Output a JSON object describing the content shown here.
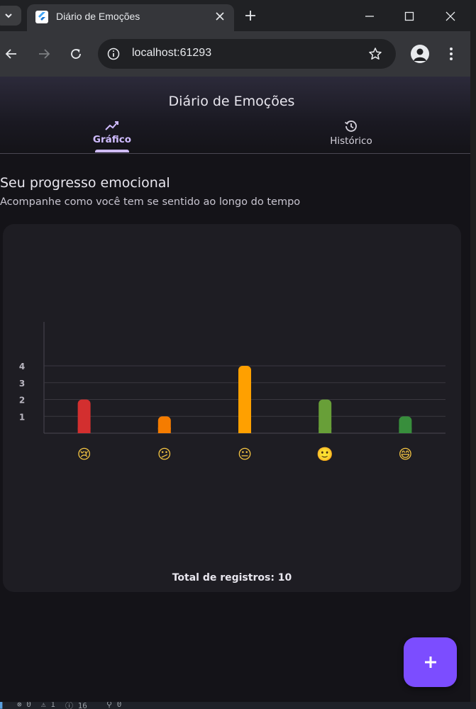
{
  "browser": {
    "tab_title": "Diário de Emoções",
    "url": "localhost:61293"
  },
  "app": {
    "title": "Diário de Emoções",
    "tabs": [
      {
        "label": "Gráfico",
        "icon": "trending-up-icon",
        "selected": true
      },
      {
        "label": "Histórico",
        "icon": "history-icon",
        "selected": false
      }
    ],
    "section_title": "Seu progresso emocional",
    "section_subtitle": "Acompanhe como você tem se sentido ao longo do tempo",
    "total_label": "Total de registros: 10",
    "fab_icon": "plus-icon"
  },
  "chart_data": {
    "type": "bar",
    "categories": [
      "Péssimo",
      "Ruim",
      "Neutro",
      "Bom",
      "Excelente"
    ],
    "emojis": [
      "😢",
      "😕",
      "😐",
      "🙂",
      "😄"
    ],
    "values": [
      2,
      1,
      4,
      2,
      1
    ],
    "colors": [
      "#d32f2f",
      "#f57c00",
      "#ffa000",
      "#689f38",
      "#388e3c"
    ],
    "ylim": [
      0,
      4.8
    ],
    "yticks": [
      1,
      2,
      3,
      4
    ],
    "grid": true
  },
  "statusbar": {
    "errors": "0",
    "warnings": "1",
    "infos": "16",
    "ports": "0"
  },
  "colors": {
    "accent": "#d0bcff",
    "fab": "#7c4dff",
    "background": "#141318",
    "card": "#1e1d23"
  }
}
